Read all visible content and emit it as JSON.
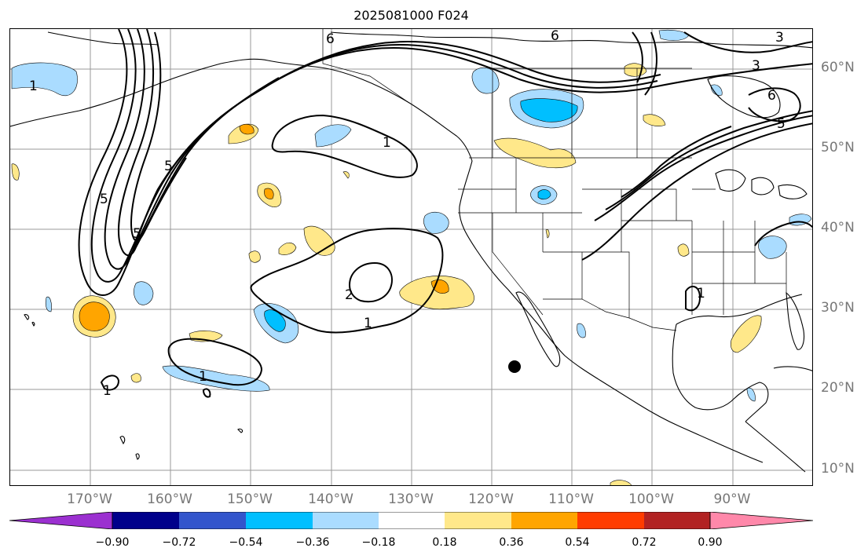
{
  "title": "2025081000 F024",
  "lat_labels": [
    "60°N",
    "50°N",
    "40°N",
    "30°N",
    "20°N",
    "10°N"
  ],
  "lon_labels": [
    "170°W",
    "160°W",
    "150°W",
    "140°W",
    "130°W",
    "120°W",
    "110°W",
    "100°W",
    "90°W"
  ],
  "contour_labels": [
    "1",
    "1",
    "1",
    "1",
    "1",
    "1",
    "2",
    "3",
    "3",
    "5",
    "5",
    "5",
    "5",
    "6",
    "6",
    "6"
  ],
  "colorbar": {
    "ticks": [
      "−0.90",
      "−0.72",
      "−0.54",
      "−0.36",
      "−0.18",
      "0.18",
      "0.36",
      "0.54",
      "0.72",
      "0.90"
    ],
    "colors": [
      "#9b30d0",
      "#00008b",
      "#3355cc",
      "#00bfff",
      "#aadcff",
      "#ffffff",
      "#ffe88a",
      "#ffa500",
      "#ff3c00",
      "#b22222",
      "#ff88aa"
    ]
  },
  "colors": {
    "contour": "#000000",
    "coast": "#000000",
    "grid": "#999999",
    "axis_label": "#777777"
  }
}
